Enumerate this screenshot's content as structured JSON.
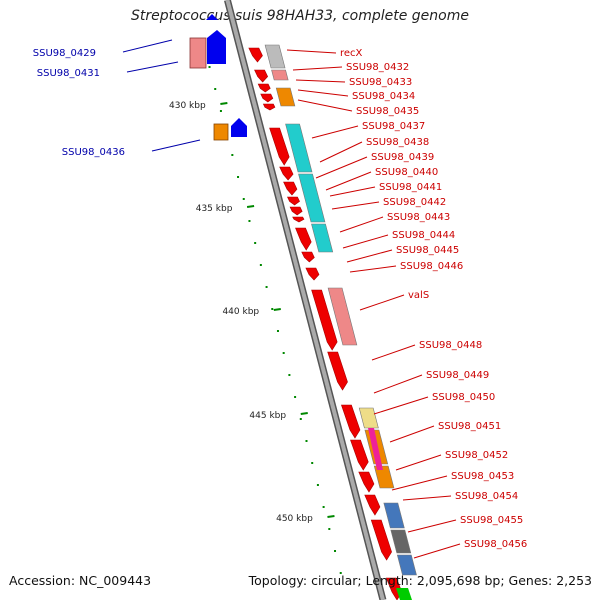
{
  "title": "Streptococcus suis 98HAH33, complete genome",
  "accession_text": "Accession: NC_009443",
  "summary_text": "Topology: circular; Length: 2,095,698 bp; Genes: 2,253",
  "colors": {
    "red": "#ee0000",
    "pink": "#ee8888",
    "grey": "#bbbbbb",
    "orange": "#ee8800",
    "cyan": "#22cccc",
    "yellow": "#eedd88",
    "magenta": "#ee2299",
    "steel": "#4477bb",
    "darkgrey": "#666666",
    "blue": "#0000ee",
    "green": "#00cc00",
    "right_label": "#cc0000",
    "left_label": "#0000aa",
    "ticks": "#008800"
  },
  "scale_ticks": [
    {
      "label": "430 kbp"
    },
    {
      "label": "435 kbp"
    },
    {
      "label": "440 kbp"
    },
    {
      "label": "445 kbp"
    },
    {
      "label": "450 kbp"
    }
  ],
  "genes_right": [
    {
      "label": "recX",
      "color": "grey"
    },
    {
      "label": "SSU98_0432",
      "color": "pink"
    },
    {
      "label": "SSU98_0433",
      "color": "red"
    },
    {
      "label": "SSU98_0434",
      "color": "red"
    },
    {
      "label": "SSU98_0435",
      "color": "orange"
    },
    {
      "label": "SSU98_0437",
      "color": "red"
    },
    {
      "label": "SSU98_0438",
      "color": "cyan"
    },
    {
      "label": "SSU98_0439",
      "color": "red"
    },
    {
      "label": "SSU98_0440",
      "color": "red"
    },
    {
      "label": "SSU98_0441",
      "color": "red"
    },
    {
      "label": "SSU98_0442",
      "color": "red"
    },
    {
      "label": "SSU98_0443",
      "color": "red"
    },
    {
      "label": "SSU98_0444",
      "color": "cyan"
    },
    {
      "label": "SSU98_0445",
      "color": "red"
    },
    {
      "label": "SSU98_0446",
      "color": "red"
    },
    {
      "label": "valS",
      "color": "pink"
    },
    {
      "label": "SSU98_0448",
      "color": "red"
    },
    {
      "label": "SSU98_0449",
      "color": "red"
    },
    {
      "label": "SSU98_0450",
      "color": "yellow"
    },
    {
      "label": "SSU98_0451",
      "color": "magenta"
    },
    {
      "label": "SSU98_0452",
      "color": "orange"
    },
    {
      "label": "SSU98_0453",
      "color": "red"
    },
    {
      "label": "SSU98_0454",
      "color": "red"
    },
    {
      "label": "SSU98_0455",
      "color": "steel"
    },
    {
      "label": "SSU98_0456",
      "color": "darkgrey"
    }
  ],
  "genes_left": [
    {
      "label": "SSU98_0429",
      "color": "pink"
    },
    {
      "label": "SSU98_0431",
      "color": "blue"
    },
    {
      "label": "SSU98_0436",
      "color": "orange"
    }
  ]
}
